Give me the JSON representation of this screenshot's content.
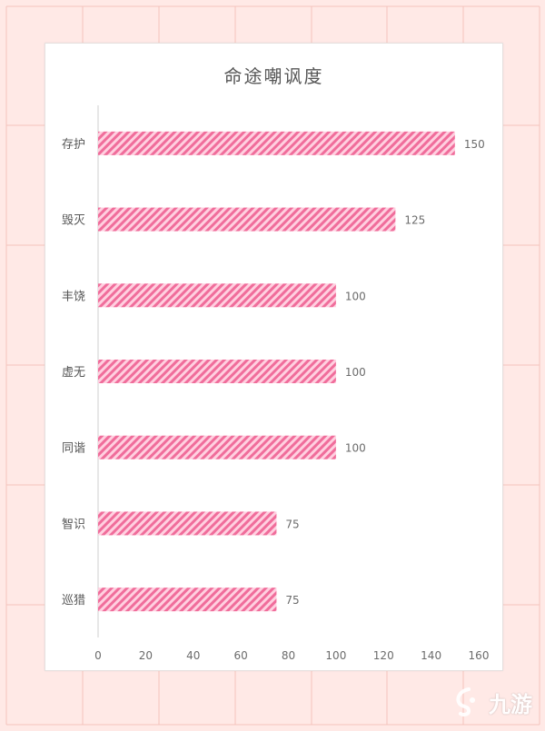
{
  "chart_data": {
    "type": "bar",
    "orientation": "horizontal",
    "title": "命途嘲讽度",
    "categories": [
      "存护",
      "毁灭",
      "丰饶",
      "虚无",
      "同谐",
      "智识",
      "巡猎"
    ],
    "values": [
      150,
      125,
      100,
      100,
      100,
      75,
      75
    ],
    "xlim": [
      0,
      160
    ],
    "xticks": [
      0,
      20,
      40,
      60,
      80,
      100,
      120,
      140,
      160
    ],
    "xlabel": "",
    "ylabel": "",
    "grid": false,
    "bar_color": "#f06d9b",
    "bar_pattern": "diagonal-stripes",
    "data_labels": true
  },
  "watermark": {
    "icon": "jiuyou-logo-icon",
    "text": "九游"
  },
  "colors": {
    "page_background": "#ffe9e6",
    "page_grid": "#f4c4bc"
  }
}
